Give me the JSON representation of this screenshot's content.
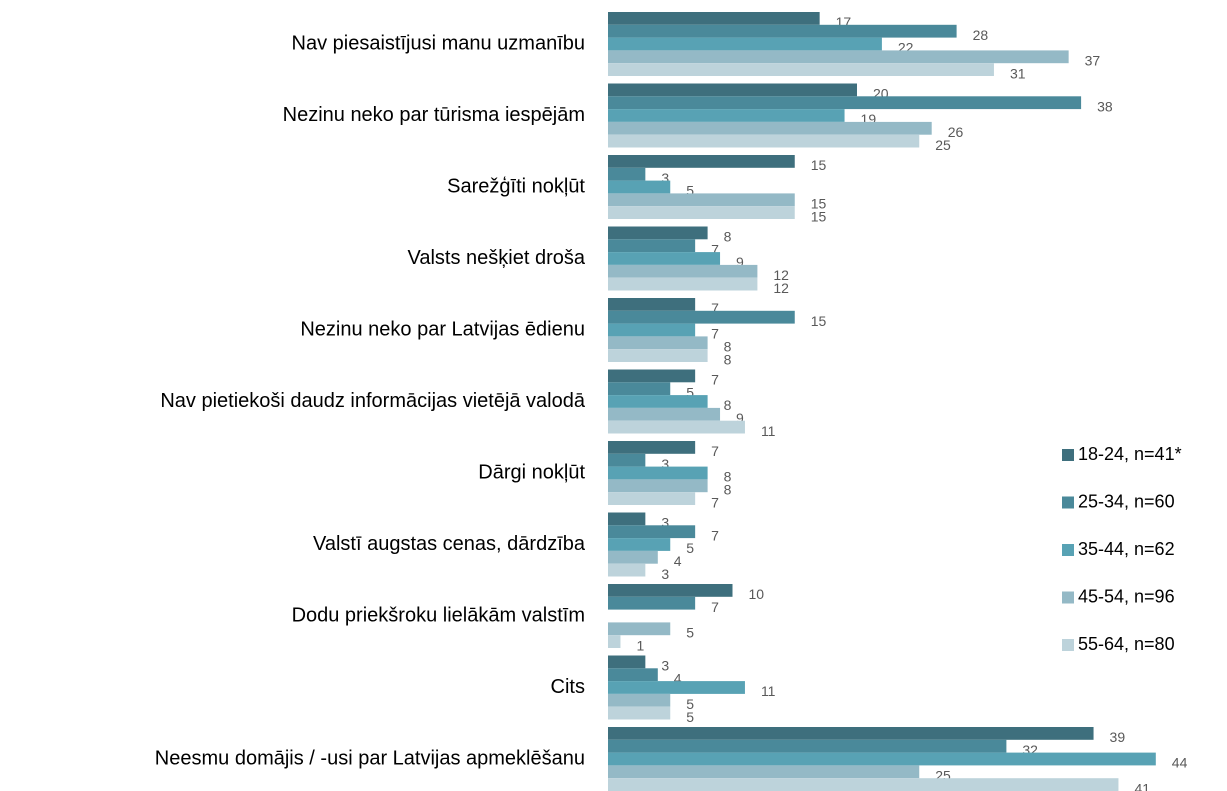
{
  "chart_data": {
    "type": "bar",
    "orientation": "horizontal",
    "categories": [
      "Nav piesaistījusi manu uzmanību",
      "Nezinu neko par tūrisma iespējām",
      "Sarežģīti nokļūt",
      "Valsts nešķiet droša",
      "Nezinu neko par Latvijas ēdienu",
      "Nav pietiekoši daudz informācijas vietējā valodā",
      "Dārgi nokļūt",
      "Valstī augstas cenas, dārdzība",
      "Dodu priekšroku lielākām valstīm",
      "Cits",
      "Neesmu domājis / -usi par Latvijas apmeklēšanu"
    ],
    "series": [
      {
        "name": "18-24, n=41*",
        "color": "#3e6f7d",
        "values": [
          17,
          20,
          15,
          8,
          7,
          7,
          7,
          3,
          10,
          3,
          39
        ]
      },
      {
        "name": "25-34, n=60",
        "color": "#4a899a",
        "values": [
          28,
          38,
          3,
          7,
          15,
          5,
          3,
          7,
          7,
          4,
          32
        ]
      },
      {
        "name": "35-44, n=62",
        "color": "#58a2b4",
        "values": [
          22,
          19,
          5,
          9,
          7,
          8,
          8,
          5,
          null,
          11,
          44
        ]
      },
      {
        "name": "45-54, n=96",
        "color": "#94b9c6",
        "values": [
          37,
          26,
          15,
          12,
          8,
          9,
          8,
          4,
          5,
          5,
          25
        ]
      },
      {
        "name": "55-64, n=80",
        "color": "#bdd3db",
        "values": [
          31,
          25,
          15,
          12,
          8,
          11,
          7,
          3,
          1,
          5,
          41
        ]
      }
    ],
    "legend": "right"
  }
}
